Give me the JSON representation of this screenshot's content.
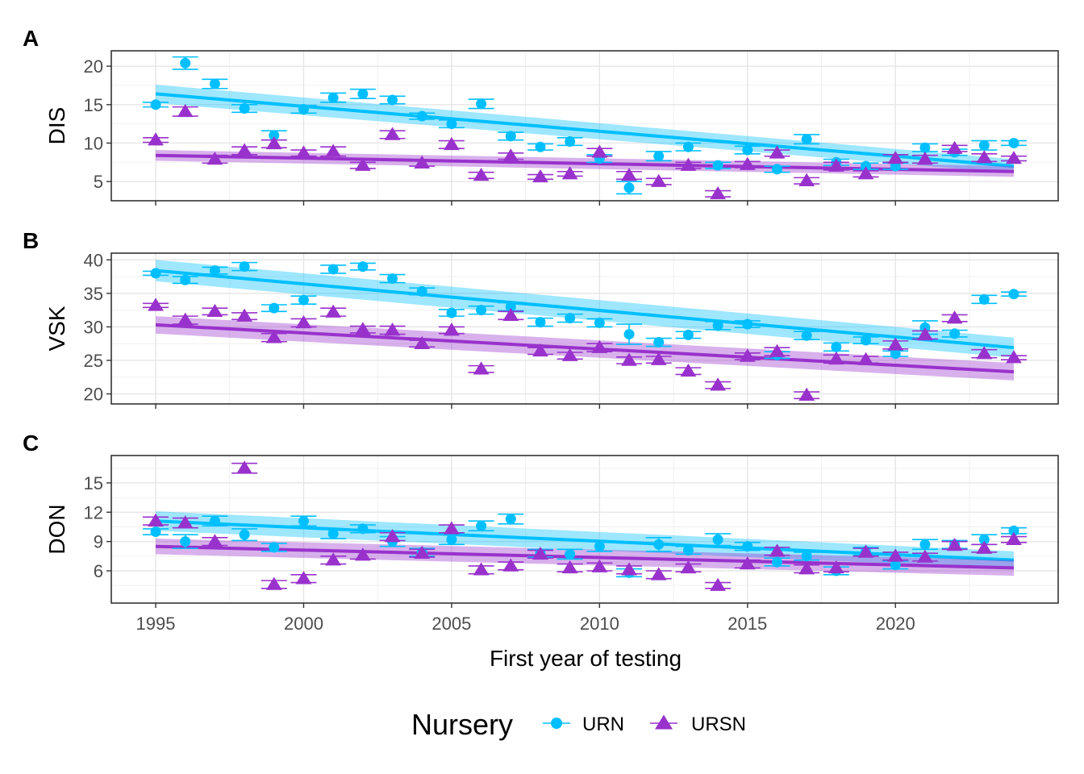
{
  "chart_data": {
    "type": "scatter",
    "xlabel": "First year of testing",
    "xlim": [
      1993.5,
      2025.5
    ],
    "xticks": [
      1995,
      2000,
      2005,
      2010,
      2015,
      2020
    ],
    "grid": true,
    "legend": {
      "title": "Nursery",
      "placement": "bottom",
      "entries": [
        {
          "name": "URN",
          "shape": "circle",
          "color": "#00BFFF"
        },
        {
          "name": "URSN",
          "shape": "triangle",
          "color": "#9932CC"
        }
      ]
    },
    "panels": [
      {
        "tag": "A",
        "ylabel": "DIS",
        "ylim": [
          2.5,
          22.0
        ],
        "yticks": [
          5,
          10,
          15,
          20
        ],
        "series": [
          {
            "name": "URN",
            "x": [
              1995,
              1996,
              1997,
              1998,
              1999,
              2000,
              2001,
              2002,
              2003,
              2004,
              2005,
              2006,
              2007,
              2008,
              2009,
              2010,
              2011,
              2012,
              2013,
              2014,
              2015,
              2016,
              2017,
              2018,
              2019,
              2020,
              2021,
              2022,
              2023,
              2024
            ],
            "y": [
              15.0,
              20.4,
              17.7,
              14.5,
              11.0,
              14.4,
              15.9,
              16.4,
              15.6,
              13.5,
              12.5,
              15.1,
              10.9,
              9.5,
              10.2,
              8.0,
              4.2,
              8.3,
              9.5,
              7.1,
              9.1,
              6.6,
              10.5,
              7.5,
              7.0,
              7.0,
              9.4,
              8.8,
              9.7,
              10.0
            ],
            "err": [
              0.3,
              0.8,
              0.6,
              0.5,
              0.6,
              0.5,
              0.6,
              0.6,
              0.5,
              0.4,
              0.5,
              0.6,
              0.5,
              0.4,
              0.5,
              0.5,
              0.8,
              0.6,
              0.5,
              0.4,
              0.5,
              0.4,
              0.6,
              0.4,
              0.4,
              0.4,
              0.5,
              0.4,
              0.6,
              0.3
            ],
            "trend": {
              "x0": 1995,
              "y0": 16.4,
              "x1": 2024,
              "y1": 7.0,
              "ci0": 1.2,
              "ci1": 0.9
            }
          },
          {
            "name": "URSN",
            "x": [
              1995,
              1996,
              1997,
              1998,
              1999,
              2000,
              2001,
              2002,
              2003,
              2004,
              2005,
              2006,
              2007,
              2008,
              2009,
              2010,
              2011,
              2012,
              2013,
              2014,
              2015,
              2016,
              2017,
              2018,
              2019,
              2020,
              2021,
              2022,
              2023,
              2024
            ],
            "y": [
              10.4,
              14.1,
              7.9,
              9.0,
              9.9,
              8.7,
              8.9,
              7.1,
              11.1,
              7.4,
              9.8,
              5.8,
              8.3,
              5.6,
              6.0,
              8.8,
              5.8,
              5.0,
              7.1,
              3.4,
              7.2,
              8.7,
              5.1,
              7.0,
              6.0,
              8.0,
              7.9,
              9.3,
              8.1,
              8.0
            ],
            "err": [
              0.3,
              0.6,
              0.5,
              0.5,
              0.5,
              0.4,
              0.6,
              0.4,
              0.5,
              0.4,
              0.5,
              0.4,
              0.4,
              0.3,
              0.3,
              0.5,
              0.5,
              0.4,
              0.4,
              0.4,
              0.4,
              0.4,
              0.4,
              0.5,
              0.4,
              0.5,
              0.5,
              0.4,
              0.5,
              0.3
            ],
            "trend": {
              "x0": 1995,
              "y0": 8.4,
              "x1": 2024,
              "y1": 6.3,
              "ci0": 0.7,
              "ci1": 0.7
            }
          }
        ]
      },
      {
        "tag": "B",
        "ylabel": "VSK",
        "ylim": [
          18.5,
          41.0
        ],
        "yticks": [
          20,
          25,
          30,
          35,
          40
        ],
        "series": [
          {
            "name": "URN",
            "x": [
              1995,
              1996,
              1997,
              1998,
              1999,
              2000,
              2001,
              2002,
              2003,
              2004,
              2005,
              2006,
              2007,
              2008,
              2009,
              2010,
              2011,
              2012,
              2013,
              2014,
              2015,
              2016,
              2017,
              2018,
              2019,
              2020,
              2021,
              2022,
              2023,
              2024
            ],
            "y": [
              38.0,
              37.0,
              38.4,
              39.0,
              32.8,
              34.0,
              38.6,
              39.0,
              37.2,
              35.3,
              32.1,
              32.5,
              33.0,
              30.7,
              31.3,
              30.6,
              28.9,
              27.7,
              28.8,
              30.2,
              30.4,
              25.8,
              28.7,
              27.0,
              28.0,
              26.0,
              29.9,
              29.0,
              34.1,
              34.9
            ],
            "err": [
              0.3,
              0.5,
              0.5,
              0.6,
              0.5,
              0.6,
              0.6,
              0.5,
              0.6,
              0.5,
              0.5,
              0.6,
              0.6,
              0.6,
              0.6,
              0.6,
              1.5,
              0.6,
              0.5,
              0.6,
              0.5,
              0.5,
              0.6,
              0.6,
              0.5,
              0.4,
              1.0,
              0.5,
              0.6,
              0.3
            ],
            "trend": {
              "x0": 1995,
              "y0": 38.4,
              "x1": 2024,
              "y1": 26.9,
              "ci0": 1.6,
              "ci1": 1.5
            }
          },
          {
            "name": "URSN",
            "x": [
              1995,
              1996,
              1997,
              1998,
              1999,
              2000,
              2001,
              2002,
              2003,
              2004,
              2005,
              2006,
              2007,
              2008,
              2009,
              2010,
              2011,
              2012,
              2013,
              2014,
              2015,
              2016,
              2017,
              2018,
              2019,
              2020,
              2021,
              2022,
              2023,
              2024
            ],
            "y": [
              33.2,
              31.0,
              32.3,
              31.6,
              28.4,
              30.6,
              32.2,
              29.6,
              29.5,
              27.5,
              29.5,
              23.7,
              31.7,
              26.4,
              25.7,
              26.9,
              25.0,
              25.1,
              23.4,
              21.3,
              25.6,
              26.3,
              19.8,
              25.2,
              25.1,
              27.3,
              28.8,
              31.3,
              26.0,
              25.4
            ],
            "err": [
              0.3,
              0.6,
              0.5,
              0.5,
              0.6,
              0.6,
              0.6,
              0.5,
              0.6,
              0.5,
              0.5,
              0.5,
              0.6,
              0.5,
              0.5,
              0.6,
              0.5,
              0.5,
              0.5,
              0.5,
              0.5,
              0.6,
              0.5,
              0.6,
              0.5,
              0.6,
              0.6,
              0.5,
              0.6,
              0.3
            ],
            "trend": {
              "x0": 1995,
              "y0": 30.3,
              "x1": 2024,
              "y1": 23.3,
              "ci0": 1.3,
              "ci1": 1.3
            }
          }
        ]
      },
      {
        "tag": "C",
        "ylabel": "DON",
        "ylim": [
          2.7,
          17.8
        ],
        "yticks": [
          6,
          9,
          12,
          15
        ],
        "series": [
          {
            "name": "URN",
            "x": [
              1995,
              1996,
              1997,
              1998,
              1999,
              2000,
              2001,
              2002,
              2003,
              2004,
              2005,
              2006,
              2007,
              2008,
              2009,
              2010,
              2011,
              2012,
              2013,
              2014,
              2015,
              2016,
              2017,
              2018,
              2019,
              2020,
              2021,
              2022,
              2023,
              2024
            ],
            "y": [
              10.0,
              9.0,
              11.1,
              9.7,
              8.4,
              11.1,
              9.8,
              10.3,
              9.0,
              7.9,
              9.2,
              10.6,
              11.3,
              7.8,
              7.7,
              8.5,
              5.8,
              8.7,
              8.1,
              9.2,
              8.5,
              6.9,
              7.5,
              6.0,
              8.0,
              6.6,
              8.7,
              8.7,
              9.2,
              10.1
            ],
            "err": [
              0.3,
              0.7,
              0.5,
              0.6,
              0.4,
              0.5,
              0.5,
              0.4,
              0.5,
              0.4,
              0.5,
              0.5,
              0.5,
              0.4,
              0.5,
              0.5,
              0.4,
              0.7,
              0.4,
              0.6,
              0.4,
              0.4,
              0.4,
              0.4,
              0.4,
              0.4,
              0.5,
              0.4,
              0.5,
              0.3
            ],
            "trend": {
              "x0": 1995,
              "y0": 11.1,
              "x1": 2024,
              "y1": 7.1,
              "ci0": 1.0,
              "ci1": 0.9
            }
          },
          {
            "name": "URSN",
            "x": [
              1995,
              1996,
              1997,
              1998,
              1999,
              2000,
              2001,
              2002,
              2003,
              2004,
              2005,
              2006,
              2007,
              2008,
              2009,
              2010,
              2011,
              2012,
              2013,
              2014,
              2015,
              2016,
              2017,
              2018,
              2019,
              2020,
              2021,
              2022,
              2023,
              2024
            ],
            "y": [
              11.1,
              10.9,
              9.0,
              16.5,
              4.6,
              5.2,
              7.1,
              7.6,
              9.5,
              7.8,
              10.3,
              6.1,
              6.5,
              7.7,
              6.3,
              6.4,
              6.1,
              5.6,
              6.3,
              4.5,
              6.7,
              8.0,
              6.2,
              6.3,
              7.9,
              7.5,
              7.4,
              8.6,
              8.3,
              9.2
            ],
            "err": [
              0.4,
              0.5,
              0.4,
              0.5,
              0.4,
              0.4,
              0.4,
              0.4,
              0.4,
              0.4,
              0.4,
              0.4,
              0.4,
              0.4,
              0.4,
              0.4,
              0.4,
              0.4,
              0.4,
              0.3,
              0.4,
              0.4,
              0.4,
              0.4,
              0.4,
              0.4,
              0.4,
              0.4,
              0.4,
              0.3
            ],
            "trend": {
              "x0": 1995,
              "y0": 8.5,
              "x1": 2024,
              "y1": 6.3,
              "ci0": 0.8,
              "ci1": 0.8
            }
          }
        ]
      }
    ]
  }
}
